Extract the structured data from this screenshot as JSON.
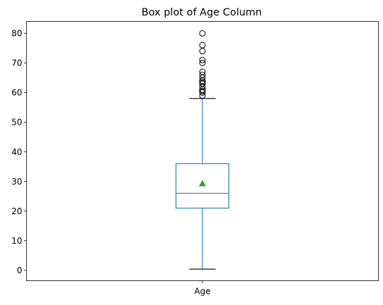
{
  "chart_data": {
    "type": "box",
    "title": "Box plot of Age Column",
    "xlabel": "",
    "ylabel": "",
    "categories": [
      "Age"
    ],
    "ylim": [
      -3.5,
      84
    ],
    "yticks": [
      0,
      10,
      20,
      30,
      40,
      50,
      60,
      70,
      80
    ],
    "grid": false,
    "series": [
      {
        "whisker_low": 0.42,
        "q1": 21,
        "median": 26,
        "q3": 36,
        "whisker_high": 58,
        "mean": 29.3,
        "outliers": [
          59,
          60,
          60.5,
          61,
          62,
          63,
          63.5,
          64,
          65,
          66,
          67,
          70,
          71,
          74,
          76,
          80
        ]
      }
    ],
    "colors": {
      "box": "#1f77b4",
      "median": "#2ca02c",
      "mean_marker": "#2ca02c",
      "whisker_cap": "#000000",
      "outlier_edge": "#000000"
    }
  }
}
